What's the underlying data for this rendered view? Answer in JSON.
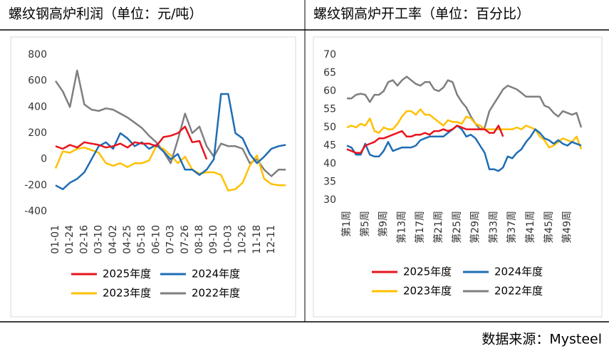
{
  "chart_data": [
    {
      "type": "line",
      "title": "螺纹钢高炉利润（单位：元/吨）",
      "categories": [
        "01-01",
        null,
        "01-24",
        null,
        "02-16",
        null,
        "03-10",
        null,
        "04-02",
        null,
        "04-25",
        null,
        "05-18",
        null,
        "06-10",
        null,
        "07-03",
        null,
        "07-26",
        null,
        "08-18",
        null,
        "09-10",
        null,
        "10-03",
        null,
        "10-26",
        null,
        "11-18",
        null,
        "12-11",
        null,
        null
      ],
      "ylim": [
        -400,
        800
      ],
      "yticks": [
        -400,
        -200,
        0,
        200,
        400,
        600,
        800
      ],
      "series": [
        {
          "name": "2025年度",
          "color": "#e8141c",
          "values": [
            100,
            80,
            110,
            90,
            130,
            120,
            110,
            90,
            100,
            120,
            90,
            130,
            120,
            120,
            100,
            170,
            180,
            200,
            250,
            130,
            140,
            0,
            null,
            null,
            null,
            null,
            null,
            null,
            null,
            null,
            null,
            null,
            null
          ]
        },
        {
          "name": "2024年度",
          "color": "#1f6db5",
          "values": [
            -200,
            -230,
            -180,
            -150,
            -100,
            0,
            100,
            130,
            80,
            200,
            160,
            100,
            130,
            80,
            110,
            60,
            0,
            40,
            -80,
            -80,
            -120,
            -80,
            0,
            500,
            500,
            200,
            160,
            40,
            -30,
            20,
            80,
            100,
            110
          ]
        },
        {
          "name": "2023年度",
          "color": "#ffc000",
          "values": [
            -70,
            60,
            50,
            80,
            90,
            70,
            50,
            -30,
            -50,
            -30,
            -60,
            -30,
            -30,
            -10,
            100,
            80,
            30,
            -30,
            20,
            -80,
            -110,
            -100,
            -100,
            -120,
            -240,
            -230,
            -180,
            -50,
            30,
            -150,
            -190,
            -200,
            -200
          ]
        },
        {
          "name": "2022年度",
          "color": "#7f7f7f",
          "values": [
            600,
            520,
            400,
            680,
            420,
            380,
            370,
            390,
            380,
            350,
            320,
            280,
            240,
            180,
            130,
            60,
            -30,
            150,
            350,
            200,
            250,
            100,
            20,
            120,
            100,
            100,
            80,
            -30,
            0,
            -80,
            -130,
            -80,
            -80
          ]
        }
      ]
    },
    {
      "type": "line",
      "title": "螺纹钢高炉开工率（单位：百分比）",
      "categories": [
        "第1周",
        null,
        null,
        null,
        "第5周",
        null,
        null,
        null,
        "第9周",
        null,
        null,
        null,
        "第13周",
        null,
        null,
        null,
        "第17周",
        null,
        null,
        null,
        "第21周",
        null,
        null,
        null,
        "第25周",
        null,
        null,
        null,
        "第29周",
        null,
        null,
        null,
        "第33周",
        null,
        null,
        null,
        "第37周",
        null,
        null,
        null,
        "第41周",
        null,
        null,
        null,
        "第45周",
        null,
        null,
        null,
        "第49周",
        null,
        null,
        null
      ],
      "ylim": [
        30,
        70
      ],
      "yticks": [
        30,
        35,
        40,
        45,
        50,
        55,
        60,
        65,
        70
      ],
      "series": [
        {
          "name": "2025年度",
          "color": "#e8141c",
          "values": [
            44,
            43.5,
            43,
            43,
            45,
            45.5,
            46,
            47,
            47,
            47.5,
            48,
            48.5,
            49,
            47.5,
            47.5,
            48,
            48,
            48.5,
            48,
            49,
            49,
            49.5,
            49,
            49.5,
            50.5,
            50,
            49.5,
            49.5,
            49.5,
            49.5,
            49.5,
            48.5,
            48.5,
            50.5,
            47.5,
            null,
            null,
            null,
            null,
            null,
            null,
            null,
            null,
            null,
            null,
            null,
            null,
            null,
            null,
            null,
            null,
            null
          ]
        },
        {
          "name": "2024年度",
          "color": "#1f6db5",
          "values": [
            45,
            44.5,
            42.5,
            42.5,
            45.5,
            42.5,
            42,
            42,
            43.5,
            46,
            43.5,
            44,
            44.5,
            44.5,
            44.5,
            45,
            46.5,
            47,
            47.5,
            47.5,
            47.5,
            47.5,
            48.5,
            49.5,
            50.5,
            49.5,
            47.5,
            48,
            47,
            45,
            43,
            38.5,
            38.5,
            38,
            39,
            42,
            41.5,
            43,
            44,
            46,
            47.5,
            49.5,
            48.5,
            47,
            46.5,
            45.5,
            46.5,
            45.5,
            45,
            46,
            45.5,
            45
          ]
        },
        {
          "name": "2023年度",
          "color": "#ffc000",
          "values": [
            50,
            50.5,
            50,
            51,
            50.5,
            52.5,
            49,
            48.5,
            50,
            49.5,
            49.5,
            51,
            53,
            54.5,
            54.5,
            53.5,
            55,
            53.5,
            53.5,
            52.5,
            51.5,
            50.5,
            52,
            51.5,
            51.5,
            51,
            53,
            52.5,
            51,
            50.5,
            49.5,
            49.5,
            49.5,
            49.5,
            49.5,
            49.5,
            49.5,
            50,
            49.5,
            50.5,
            50,
            49.5,
            47.5,
            46.5,
            44.5,
            45,
            46,
            47,
            46.5,
            46,
            47.5,
            44
          ]
        },
        {
          "name": "2022年度",
          "color": "#7f7f7f",
          "values": [
            58,
            58,
            59,
            59.3,
            59,
            57,
            59,
            59,
            60,
            62.5,
            63,
            61.5,
            63,
            64,
            63,
            62,
            61.5,
            62.5,
            62.5,
            60.5,
            60,
            61,
            63,
            62.5,
            59,
            57,
            55.5,
            53,
            51,
            49.5,
            50,
            54.5,
            56.5,
            58.5,
            60.5,
            61.5,
            61,
            60.5,
            59.5,
            58.5,
            58.5,
            58.5,
            58.5,
            56,
            55.5,
            54,
            53,
            54.5,
            54,
            53.5,
            54,
            50
          ]
        }
      ]
    }
  ],
  "source": "数据来源：Mysteel"
}
